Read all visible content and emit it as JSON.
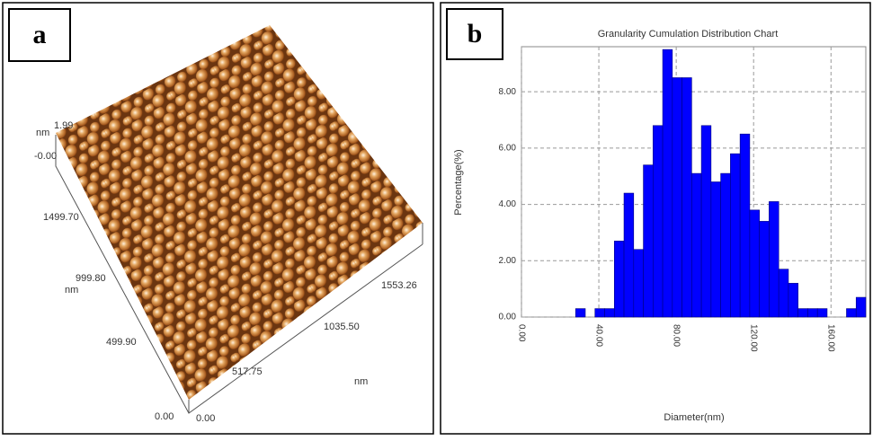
{
  "panel_a": {
    "label": "a",
    "z_unit": "nm",
    "z_max": "1.99",
    "z_min": "-0.00",
    "y_ticks": [
      "1499.70",
      "999.80",
      "499.90",
      "0.00"
    ],
    "y_unit": "nm",
    "x_ticks": [
      "0.00",
      "517.75",
      "1035.50",
      "1553.26"
    ],
    "x_unit": "nm"
  },
  "chart_data": {
    "type": "histogram",
    "panel_label": "b",
    "title": "Granularity Cumulation Distribution  Chart",
    "x_label": "Diameter(nm)",
    "y_label": "Percentage(%)",
    "bins": [
      28,
      33,
      38,
      43,
      48,
      53,
      58,
      63,
      68,
      73,
      78,
      83,
      88,
      93,
      98,
      103,
      108,
      113,
      118,
      123,
      128,
      133,
      138,
      143,
      148,
      153,
      158,
      163,
      168,
      173,
      178
    ],
    "values": [
      0.3,
      0,
      0.3,
      0.3,
      2.7,
      4.4,
      2.4,
      5.4,
      6.8,
      9.5,
      8.5,
      8.5,
      5.1,
      6.8,
      4.8,
      5.1,
      5.8,
      6.5,
      3.8,
      3.4,
      4.1,
      1.7,
      1.2,
      0.3,
      0.3,
      0.3,
      0,
      0,
      0.3,
      0.7
    ],
    "color": "#0000ff",
    "xlim": [
      0,
      178
    ],
    "ylim": [
      0,
      9.6
    ],
    "xticks": [
      {
        "value": 0,
        "label": "0.00"
      },
      {
        "value": 40,
        "label": "40.00"
      },
      {
        "value": 80,
        "label": "80.00"
      },
      {
        "value": 120,
        "label": "120.00"
      },
      {
        "value": 160,
        "label": "160.00"
      }
    ],
    "yticks": [
      {
        "value": 0,
        "label": "0.00"
      },
      {
        "value": 2,
        "label": "2.00"
      },
      {
        "value": 4,
        "label": "4.00"
      },
      {
        "value": 6,
        "label": "6.00"
      },
      {
        "value": 8,
        "label": "8.00"
      }
    ],
    "grid": true
  }
}
